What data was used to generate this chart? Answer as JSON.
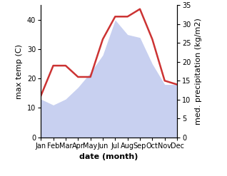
{
  "months": [
    "Jan",
    "Feb",
    "Mar",
    "Apr",
    "May",
    "Jun",
    "Jul",
    "Aug",
    "Sep",
    "Oct",
    "Nov",
    "Dec"
  ],
  "max_temp": [
    13,
    11,
    13,
    17,
    22,
    28,
    40,
    35,
    34,
    25,
    18,
    18
  ],
  "precipitation": [
    11,
    19,
    19,
    16,
    16,
    26,
    32,
    32,
    34,
    26,
    15,
    14
  ],
  "temp_fill_color": "#c8d0f0",
  "precip_color": "#cc3333",
  "temp_ylim": [
    0,
    45
  ],
  "precip_ylim": [
    0,
    35
  ],
  "temp_yticks": [
    0,
    10,
    20,
    30,
    40
  ],
  "precip_yticks": [
    0,
    5,
    10,
    15,
    20,
    25,
    30,
    35
  ],
  "xlabel": "date (month)",
  "ylabel_left": "max temp (C)",
  "ylabel_right": "med. precipitation (kg/m2)",
  "label_fontsize": 8,
  "tick_fontsize": 7,
  "xlabel_fontsize": 8,
  "precip_linewidth": 1.8
}
